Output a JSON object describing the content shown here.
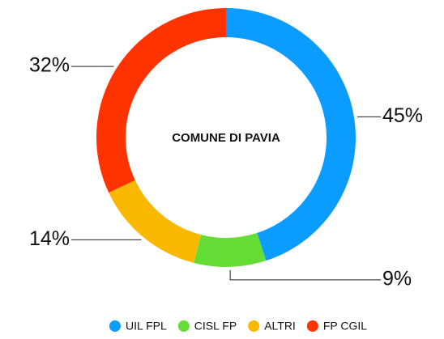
{
  "chart_data": {
    "type": "pie",
    "title": "COMUNE DI PAVIA",
    "categories": [
      "UIL FPL",
      "CISL FP",
      "ALTRI",
      "FP CGIL"
    ],
    "values": [
      45,
      9,
      14,
      32
    ],
    "value_labels": [
      "45%",
      "9%",
      "14%",
      "32%"
    ],
    "colors": [
      "#0a9cff",
      "#66dd36",
      "#fbb800",
      "#ff3300"
    ],
    "legend": "bottom"
  }
}
